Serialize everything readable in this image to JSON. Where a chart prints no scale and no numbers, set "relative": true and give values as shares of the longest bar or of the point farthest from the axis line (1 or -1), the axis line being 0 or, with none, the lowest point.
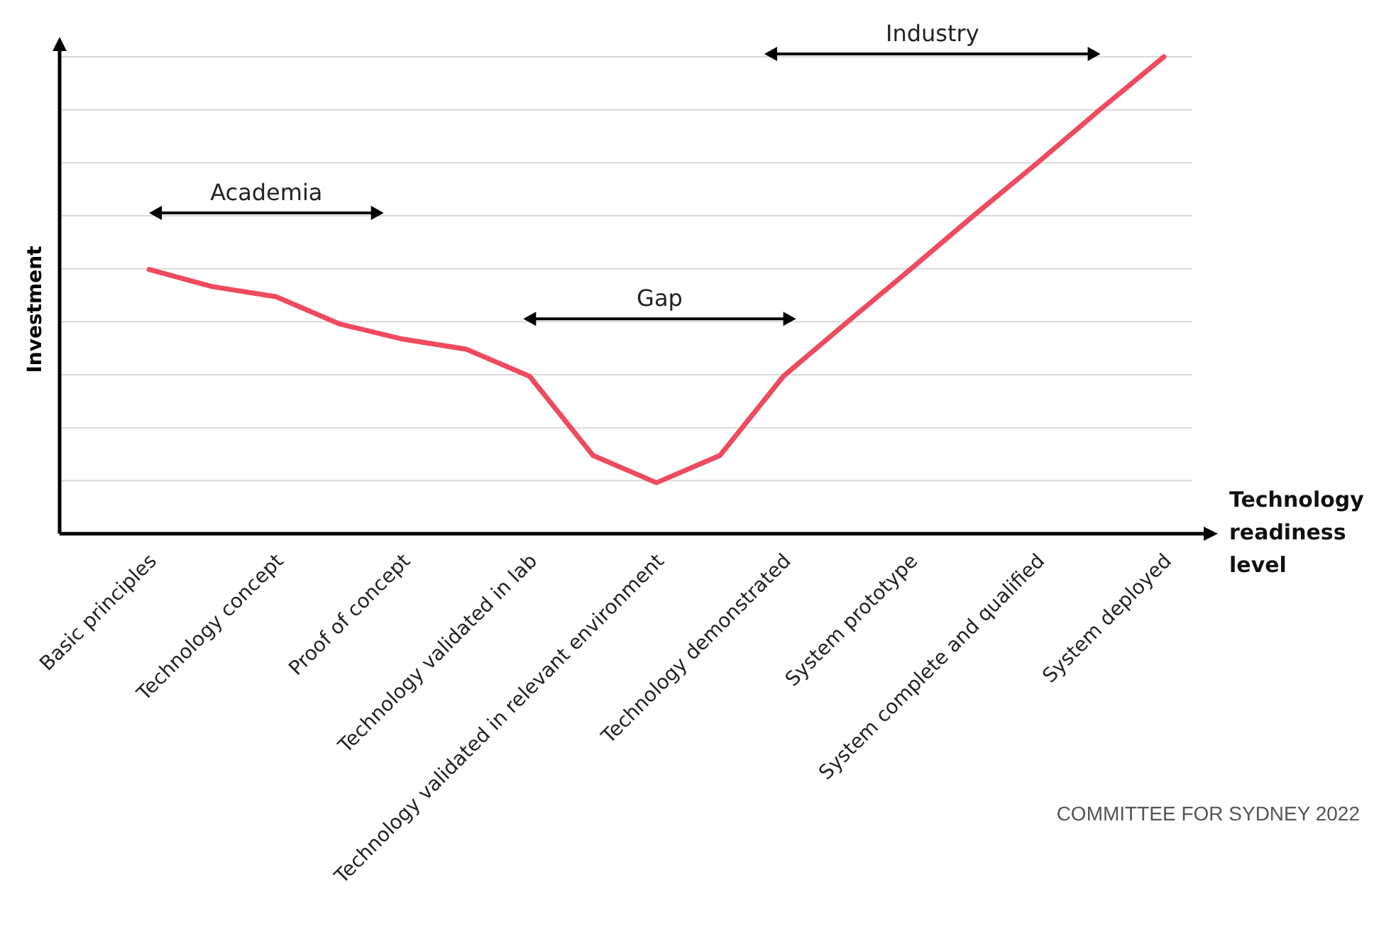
{
  "chart_data": {
    "type": "line",
    "relative": true,
    "xlabel": "Technology readiness level",
    "ylabel": "Investment",
    "categories": [
      "Basic principles",
      null,
      "Technology concept",
      null,
      "Proof of concept",
      null,
      "Technology validated in lab",
      null,
      "Technology validated in relevant environment",
      null,
      "Technology demonstrated",
      null,
      "System prototype",
      null,
      "System complete and qualified",
      null,
      "System deployed"
    ],
    "series": [
      {
        "color": "#ef4a5e",
        "values": [
          0.554,
          0.518,
          0.497,
          0.44,
          0.408,
          0.387,
          0.33,
          0.164,
          0.107,
          0.164,
          0.33,
          0.443,
          0.554,
          0.667,
          0.777,
          0.89,
          1
        ]
      }
    ],
    "grid": "y",
    "marker": "none",
    "line_style": "solid",
    "annotations": [
      "Academia",
      "Gap",
      "Industry",
      "COMMITTEE FOR SYDNEY 2022"
    ]
  }
}
